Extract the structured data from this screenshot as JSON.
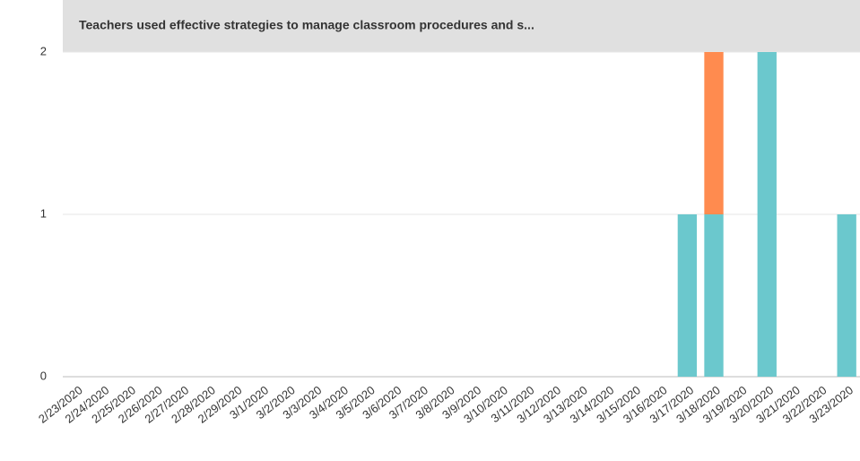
{
  "chart_data": {
    "type": "stacked_bar",
    "title": "Teachers used effective strategies to manage classroom procedures and s...",
    "categories": [
      "2/23/2020",
      "2/24/2020",
      "2/25/2020",
      "2/26/2020",
      "2/27/2020",
      "2/28/2020",
      "2/29/2020",
      "3/1/2020",
      "3/2/2020",
      "3/3/2020",
      "3/4/2020",
      "3/5/2020",
      "3/6/2020",
      "3/7/2020",
      "3/8/2020",
      "3/9/2020",
      "3/10/2020",
      "3/11/2020",
      "3/12/2020",
      "3/13/2020",
      "3/14/2020",
      "3/15/2020",
      "3/16/2020",
      "3/17/2020",
      "3/18/2020",
      "3/19/2020",
      "3/20/2020",
      "3/21/2020",
      "3/22/2020",
      "3/23/2020"
    ],
    "series": [
      {
        "color": "#6bc8cd",
        "values": [
          0,
          0,
          0,
          0,
          0,
          0,
          0,
          0,
          0,
          0,
          0,
          0,
          0,
          0,
          0,
          0,
          0,
          0,
          0,
          0,
          0,
          0,
          0,
          1,
          1,
          0,
          2,
          0,
          0,
          1
        ]
      },
      {
        "color": "#ff8b4f",
        "values": [
          0,
          0,
          0,
          0,
          0,
          0,
          0,
          0,
          0,
          0,
          0,
          0,
          0,
          0,
          0,
          0,
          0,
          0,
          0,
          0,
          0,
          0,
          0,
          0,
          1,
          0,
          0,
          0,
          0,
          0
        ]
      }
    ],
    "ylim": [
      0,
      2
    ],
    "yticks": [
      0,
      1,
      2
    ],
    "grid": true
  }
}
